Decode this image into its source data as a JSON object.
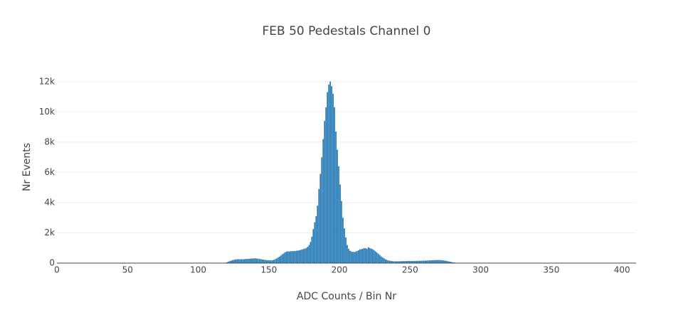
{
  "chart_data": {
    "type": "histogram",
    "title": "FEB 50 Pedestals Channel 0",
    "xlabel": "ADC Counts / Bin Nr",
    "ylabel": "Nr Events",
    "color": "#1f77b4",
    "bins": [
      118,
      119,
      120,
      121,
      122,
      123,
      124,
      125,
      126,
      127,
      128,
      129,
      130,
      131,
      132,
      133,
      134,
      135,
      136,
      137,
      138,
      139,
      140,
      141,
      142,
      143,
      144,
      145,
      146,
      147,
      148,
      149,
      150,
      151,
      152,
      153,
      154,
      155,
      156,
      157,
      158,
      159,
      160,
      161,
      162,
      163,
      164,
      165,
      166,
      167,
      168,
      169,
      170,
      171,
      172,
      173,
      174,
      175,
      176,
      177,
      178,
      179,
      180,
      181,
      182,
      183,
      184,
      185,
      186,
      187,
      188,
      189,
      190,
      191,
      192,
      193,
      194,
      195,
      196,
      197,
      198,
      199,
      200,
      201,
      202,
      203,
      204,
      205,
      206,
      207,
      208,
      209,
      210,
      211,
      212,
      213,
      214,
      215,
      216,
      217,
      218,
      219,
      220,
      221,
      222,
      223,
      224,
      225,
      226,
      227,
      228,
      229,
      230,
      231,
      232,
      233,
      234,
      235,
      236,
      237,
      238,
      239,
      240,
      241,
      242,
      243,
      244,
      245,
      246,
      247,
      248,
      249,
      250,
      251,
      252,
      253,
      254,
      255,
      256,
      257,
      258,
      259,
      260,
      261,
      262,
      263,
      264,
      265,
      266,
      267,
      268,
      269,
      270,
      271,
      272,
      273,
      274,
      275,
      276,
      277,
      278,
      279,
      280,
      281,
      282,
      283,
      284,
      285,
      286
    ],
    "counts": [
      10,
      30,
      60,
      100,
      140,
      170,
      200,
      220,
      240,
      250,
      260,
      250,
      260,
      250,
      260,
      270,
      280,
      280,
      290,
      300,
      310,
      310,
      320,
      300,
      290,
      270,
      260,
      240,
      230,
      210,
      200,
      190,
      180,
      180,
      190,
      220,
      260,
      310,
      370,
      430,
      500,
      580,
      640,
      720,
      760,
      780,
      770,
      790,
      780,
      800,
      800,
      820,
      830,
      840,
      870,
      900,
      930,
      960,
      1000,
      1080,
      1200,
      1400,
      1750,
      2250,
      2700,
      3100,
      3800,
      4900,
      5900,
      7000,
      8200,
      9400,
      10300,
      11300,
      11800,
      12000,
      11700,
      11200,
      10300,
      8700,
      7500,
      6400,
      5200,
      4100,
      3000,
      2300,
      1700,
      1200,
      950,
      820,
      760,
      740,
      740,
      760,
      800,
      850,
      900,
      930,
      950,
      1000,
      980,
      950,
      1050,
      1000,
      960,
      920,
      860,
      780,
      700,
      620,
      540,
      450,
      380,
      320,
      260,
      220,
      180,
      160,
      140,
      130,
      120,
      120,
      120,
      120,
      125,
      130,
      130,
      130,
      135,
      135,
      140,
      140,
      140,
      140,
      145,
      145,
      150,
      150,
      150,
      155,
      160,
      160,
      165,
      170,
      175,
      180,
      185,
      190,
      195,
      200,
      200,
      205,
      205,
      200,
      195,
      185,
      170,
      150,
      130,
      110,
      90,
      70,
      50,
      35,
      20,
      10,
      5,
      2
    ],
    "xlim": [
      0,
      410
    ],
    "xticks": [
      0,
      50,
      100,
      150,
      200,
      250,
      300,
      350,
      400
    ],
    "ylim": [
      0,
      12600
    ],
    "yticks": [
      0,
      {
        "value": 2000,
        "label": "2k"
      },
      {
        "value": 4000,
        "label": "4k"
      },
      {
        "value": 6000,
        "label": "6k"
      },
      {
        "value": 8000,
        "label": "8k"
      },
      {
        "value": 10000,
        "label": "10k"
      },
      {
        "value": 12000,
        "label": "12k"
      }
    ],
    "grid": true
  }
}
